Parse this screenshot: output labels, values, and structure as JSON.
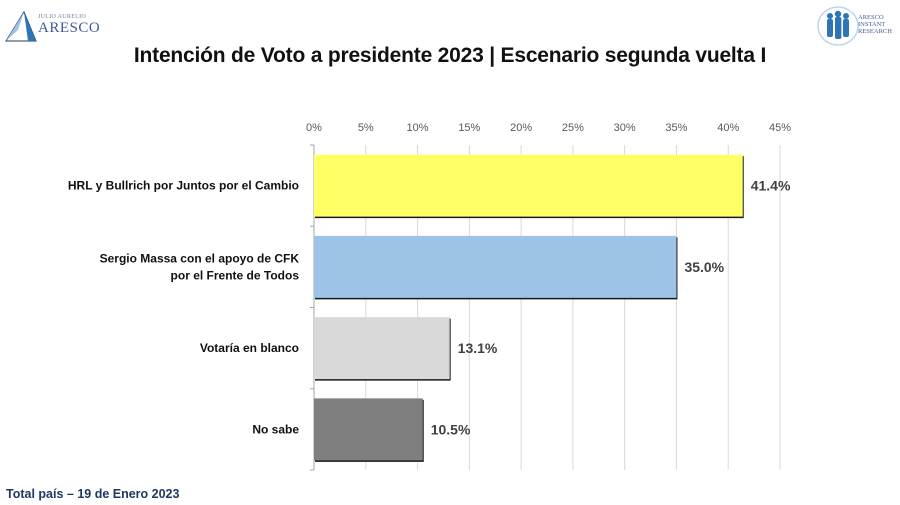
{
  "header": {
    "logo_left": {
      "top_text": "JULIO AURELIO",
      "brand": "ARESCO",
      "icon": "triangle-logo-icon"
    },
    "logo_right": {
      "lines": [
        "ARESCO",
        "INSTANT",
        "RESEARCH"
      ],
      "icon": "people-group-logo-icon"
    }
  },
  "footer": {
    "text": "Total país – 19 de Enero 2023"
  },
  "chart_data": {
    "type": "bar",
    "orientation": "horizontal",
    "title": "Intención de Voto a presidente 2023 | Escenario segunda vuelta I",
    "xlabel": "",
    "ylabel": "",
    "xlim": [
      0,
      45
    ],
    "x_ticks": [
      0,
      5,
      10,
      15,
      20,
      25,
      30,
      35,
      40,
      45
    ],
    "x_tick_labels": [
      "0%",
      "5%",
      "10%",
      "15%",
      "20%",
      "25%",
      "30%",
      "35%",
      "40%",
      "45%"
    ],
    "x_axis_position": "top",
    "grid": "vertical",
    "legend": "none",
    "categories": [
      [
        "HRL y Bullrich por Juntos por el Cambio"
      ],
      [
        "Sergio Massa con el apoyo de CFK",
        "por el Frente de Todos"
      ],
      [
        "Votaría en blanco"
      ],
      [
        "No sabe"
      ]
    ],
    "values": [
      41.4,
      35.0,
      13.1,
      10.5
    ],
    "data_labels": [
      "41.4%",
      "35.0%",
      "13.1%",
      "10.5%"
    ],
    "colors": [
      "#ffff66",
      "#9dc3e6",
      "#d9d9d9",
      "#7f7f7f"
    ]
  }
}
